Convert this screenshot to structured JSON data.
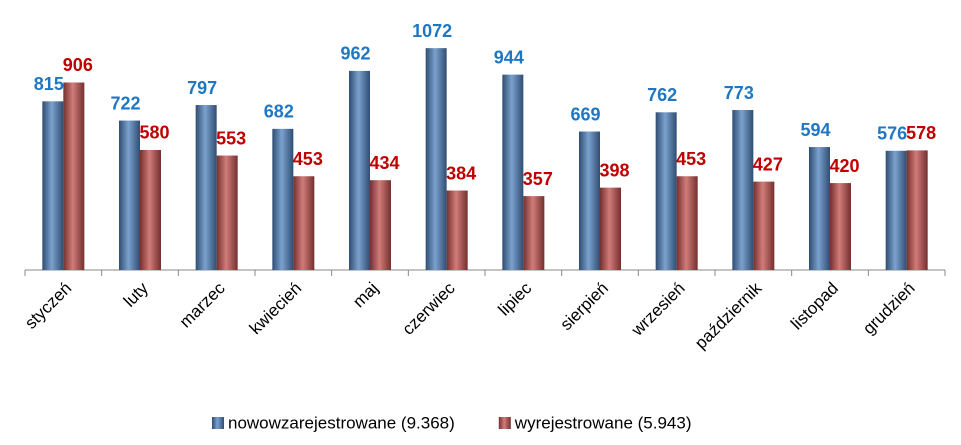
{
  "chart_data": {
    "type": "bar",
    "categories": [
      "styczeń",
      "luty",
      "marzec",
      "kwiecień",
      "maj",
      "czerwiec",
      "lipiec",
      "sierpień",
      "wrzesień",
      "październik",
      "listopad",
      "grudzień"
    ],
    "series": [
      {
        "name": "nowowzarejestrowane (9.368)",
        "color": "#4f81bd",
        "label_color": "#1f77c4",
        "values": [
          815,
          722,
          797,
          682,
          962,
          1072,
          944,
          669,
          762,
          773,
          594,
          576
        ]
      },
      {
        "name": "wyrejestrowane (5.943)",
        "color": "#c0504d",
        "label_color": "#c00000",
        "values": [
          906,
          580,
          553,
          453,
          434,
          384,
          357,
          398,
          453,
          427,
          420,
          578
        ]
      }
    ],
    "ylim": [
      0,
      1150
    ],
    "legend": "bottom"
  }
}
